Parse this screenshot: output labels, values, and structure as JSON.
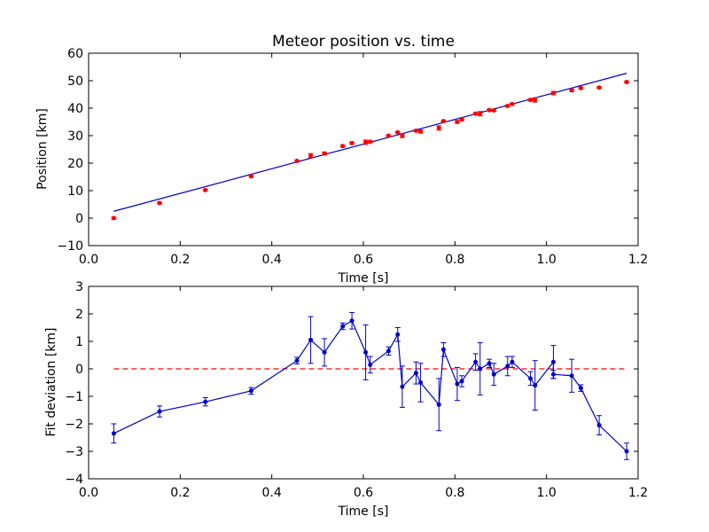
{
  "chart_data": [
    {
      "type": "scatter",
      "title": "Meteor position vs. time",
      "xlabel": "Time [s]",
      "ylabel": "Position [km]",
      "xlim": [
        0.0,
        1.2
      ],
      "ylim": [
        -10,
        60
      ],
      "xticks": [
        "0.0",
        "0.2",
        "0.4",
        "0.6",
        "0.8",
        "1.0",
        "1.2"
      ],
      "yticks": [
        "−10",
        "0",
        "10",
        "20",
        "30",
        "40",
        "50",
        "60"
      ],
      "grid": false,
      "fit_line": {
        "x": [
          0.055,
          1.175
        ],
        "y": [
          2.5,
          52.7
        ],
        "color": "#0000cc"
      },
      "series": [
        {
          "marker_color": "#ff0000",
          "points": [
            {
              "x": 0.055,
              "y": 0.0,
              "err": 0.4
            },
            {
              "x": 0.155,
              "y": 5.5,
              "err": 0.3
            },
            {
              "x": 0.255,
              "y": 10.2,
              "err": 0.3
            },
            {
              "x": 0.355,
              "y": 15.2,
              "err": 0.3
            },
            {
              "x": 0.455,
              "y": 20.8,
              "err": 0.3
            },
            {
              "x": 0.485,
              "y": 22.7,
              "err": 0.8
            },
            {
              "x": 0.515,
              "y": 23.5,
              "err": 0.5
            },
            {
              "x": 0.555,
              "y": 26.2,
              "err": 0.4
            },
            {
              "x": 0.575,
              "y": 27.3,
              "err": 0.4
            },
            {
              "x": 0.605,
              "y": 27.6,
              "err": 0.8
            },
            {
              "x": 0.615,
              "y": 27.8,
              "err": 0.3
            },
            {
              "x": 0.655,
              "y": 30.0,
              "err": 0.3
            },
            {
              "x": 0.675,
              "y": 31.2,
              "err": 0.3
            },
            {
              "x": 0.685,
              "y": 30.0,
              "err": 0.7
            },
            {
              "x": 0.715,
              "y": 31.8,
              "err": 0.3
            },
            {
              "x": 0.725,
              "y": 31.5,
              "err": 0.6
            },
            {
              "x": 0.765,
              "y": 32.8,
              "err": 0.8
            },
            {
              "x": 0.775,
              "y": 35.3,
              "err": 0.3
            },
            {
              "x": 0.805,
              "y": 35.0,
              "err": 0.5
            },
            {
              "x": 0.815,
              "y": 35.8,
              "err": 0.3
            },
            {
              "x": 0.845,
              "y": 38.0,
              "err": 0.4
            },
            {
              "x": 0.855,
              "y": 38.0,
              "err": 0.8
            },
            {
              "x": 0.875,
              "y": 39.3,
              "err": 0.3
            },
            {
              "x": 0.885,
              "y": 39.2,
              "err": 0.3
            },
            {
              "x": 0.915,
              "y": 40.8,
              "err": 0.3
            },
            {
              "x": 0.925,
              "y": 41.5,
              "err": 0.3
            },
            {
              "x": 0.965,
              "y": 43.0,
              "err": 0.4
            },
            {
              "x": 0.975,
              "y": 43.0,
              "err": 0.8
            },
            {
              "x": 1.015,
              "y": 45.5,
              "err": 0.6
            },
            {
              "x": 1.055,
              "y": 46.5,
              "err": 0.4
            },
            {
              "x": 1.075,
              "y": 47.3,
              "err": 0.3
            },
            {
              "x": 1.115,
              "y": 47.5,
              "err": 0.3
            },
            {
              "x": 1.175,
              "y": 49.5,
              "err": 0.3
            }
          ]
        }
      ]
    },
    {
      "type": "line",
      "title": "",
      "xlabel": "Time [s]",
      "ylabel": "Fit deviation [km]",
      "xlim": [
        0.0,
        1.2
      ],
      "ylim": [
        -4,
        3
      ],
      "xticks": [
        "0.0",
        "0.2",
        "0.4",
        "0.6",
        "0.8",
        "1.0",
        "1.2"
      ],
      "yticks": [
        "−4",
        "−3",
        "−2",
        "−1",
        "0",
        "1",
        "2",
        "3"
      ],
      "grid": false,
      "reference_line": {
        "y": 0,
        "x": [
          0.055,
          1.175
        ],
        "color": "#ff0000",
        "style": "dashed"
      },
      "series": [
        {
          "color": "#0000cc",
          "points": [
            {
              "x": 0.055,
              "y": -2.35,
              "err": 0.35
            },
            {
              "x": 0.155,
              "y": -1.55,
              "err": 0.2
            },
            {
              "x": 0.255,
              "y": -1.2,
              "err": 0.15
            },
            {
              "x": 0.355,
              "y": -0.8,
              "err": 0.12
            },
            {
              "x": 0.455,
              "y": 0.3,
              "err": 0.12
            },
            {
              "x": 0.485,
              "y": 1.05,
              "err": 0.85
            },
            {
              "x": 0.515,
              "y": 0.6,
              "err": 0.5
            },
            {
              "x": 0.555,
              "y": 1.55,
              "err": 0.12
            },
            {
              "x": 0.575,
              "y": 1.75,
              "err": 0.3
            },
            {
              "x": 0.605,
              "y": 0.6,
              "err": 1.0
            },
            {
              "x": 0.615,
              "y": 0.15,
              "err": 0.3
            },
            {
              "x": 0.655,
              "y": 0.65,
              "err": 0.15
            },
            {
              "x": 0.675,
              "y": 1.25,
              "err": 0.25
            },
            {
              "x": 0.685,
              "y": -0.65,
              "err": 0.75
            },
            {
              "x": 0.715,
              "y": -0.15,
              "err": 0.4
            },
            {
              "x": 0.725,
              "y": -0.5,
              "err": 0.7
            },
            {
              "x": 0.765,
              "y": -1.3,
              "err": 0.95
            },
            {
              "x": 0.775,
              "y": 0.7,
              "err": 0.25
            },
            {
              "x": 0.805,
              "y": -0.55,
              "err": 0.6
            },
            {
              "x": 0.815,
              "y": -0.45,
              "err": 0.2
            },
            {
              "x": 0.845,
              "y": 0.25,
              "err": 0.3
            },
            {
              "x": 0.855,
              "y": 0.0,
              "err": 0.95
            },
            {
              "x": 0.875,
              "y": 0.2,
              "err": 0.15
            },
            {
              "x": 0.885,
              "y": -0.2,
              "err": 0.4
            },
            {
              "x": 0.915,
              "y": 0.1,
              "err": 0.35
            },
            {
              "x": 0.925,
              "y": 0.25,
              "err": 0.2
            },
            {
              "x": 0.965,
              "y": -0.35,
              "err": 0.25
            },
            {
              "x": 0.975,
              "y": -0.6,
              "err": 0.9
            },
            {
              "x": 1.015,
              "y": 0.25,
              "err": 0.6
            },
            {
              "x": 1.015,
              "y": -0.2,
              "err": 0.15
            },
            {
              "x": 1.055,
              "y": -0.25,
              "err": 0.6
            },
            {
              "x": 1.075,
              "y": -0.7,
              "err": 0.12
            },
            {
              "x": 1.115,
              "y": -2.05,
              "err": 0.35
            },
            {
              "x": 1.175,
              "y": -3.0,
              "err": 0.3
            }
          ]
        }
      ]
    }
  ]
}
